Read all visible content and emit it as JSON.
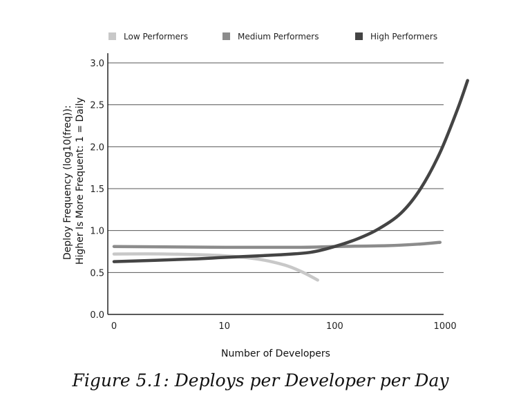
{
  "caption": "Figure 5.1: Deploys per Developer per Day",
  "chart_data": {
    "type": "line",
    "title": "",
    "xlabel": "Number of Developers",
    "ylabel_lines": [
      "Deploy Frequency (log10(freq)):",
      "Higher Is More Frequent: 1 = Daily"
    ],
    "x_scale": "log",
    "x_ticks": [
      {
        "value": 1,
        "label": "0"
      },
      {
        "value": 10,
        "label": "10"
      },
      {
        "value": 100,
        "label": "100"
      },
      {
        "value": 1000,
        "label": "1000"
      }
    ],
    "y_ticks": [
      "0.0",
      "0.5",
      "1.0",
      "1.5",
      "2.0",
      "2.5",
      "3.0"
    ],
    "ylim": [
      0,
      3
    ],
    "grid": "horizontal",
    "legend_position": "top",
    "series": [
      {
        "name": "Low Performers",
        "color": "#c8c8c8",
        "points": [
          [
            1,
            0.72
          ],
          [
            3,
            0.72
          ],
          [
            10,
            0.7
          ],
          [
            20,
            0.66
          ],
          [
            35,
            0.59
          ],
          [
            50,
            0.51
          ],
          [
            70,
            0.41
          ]
        ]
      },
      {
        "name": "Medium Performers",
        "color": "#8c8c8c",
        "points": [
          [
            1,
            0.81
          ],
          [
            10,
            0.8
          ],
          [
            50,
            0.8
          ],
          [
            100,
            0.81
          ],
          [
            300,
            0.82
          ],
          [
            600,
            0.84
          ],
          [
            900,
            0.86
          ]
        ]
      },
      {
        "name": "High Performers",
        "color": "#444444",
        "points": [
          [
            1,
            0.63
          ],
          [
            5,
            0.66
          ],
          [
            10,
            0.68
          ],
          [
            30,
            0.71
          ],
          [
            60,
            0.74
          ],
          [
            100,
            0.81
          ],
          [
            160,
            0.9
          ],
          [
            250,
            1.02
          ],
          [
            400,
            1.21
          ],
          [
            600,
            1.5
          ],
          [
            900,
            1.93
          ],
          [
            1300,
            2.45
          ],
          [
            1600,
            2.79
          ]
        ]
      }
    ]
  }
}
